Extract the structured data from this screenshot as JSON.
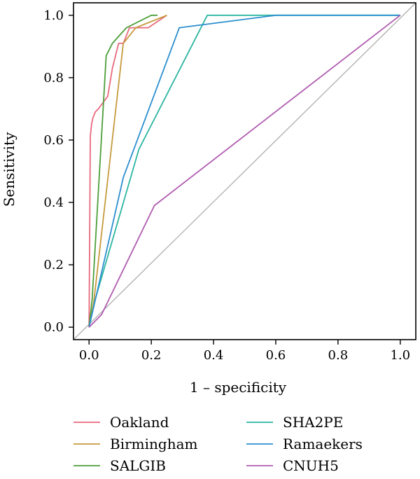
{
  "chart_data": {
    "type": "line",
    "title": "",
    "xlabel": "1 – specificity",
    "ylabel": "Sensitivity",
    "xlim": [
      -0.05,
      1.05
    ],
    "ylim": [
      -0.04,
      1.04
    ],
    "xticks": [
      0.0,
      0.2,
      0.4,
      0.6,
      0.8,
      1.0
    ],
    "yticks": [
      0.0,
      0.2,
      0.4,
      0.6,
      0.8,
      1.0
    ],
    "xtick_labels": [
      "0.0",
      "0.2",
      "0.4",
      "0.6",
      "0.8",
      "1.0"
    ],
    "ytick_labels": [
      "0.0",
      "0.2",
      "0.4",
      "0.6",
      "0.8",
      "1.0"
    ],
    "grid": false,
    "legend_position": "bottom",
    "reference_line": {
      "from": [
        -0.05,
        -0.04
      ],
      "to": [
        1.05,
        1.04
      ],
      "color": "#b3b3b3"
    },
    "series": [
      {
        "name": "Oakland",
        "color": "#e8697d",
        "x": [
          0,
          0.004,
          0.008,
          0.012,
          0.02,
          0.03,
          0.045,
          0.06,
          0.075,
          0.095,
          0.11,
          0.13,
          0.14,
          0.19,
          0.25
        ],
        "y": [
          0,
          0.61,
          0.65,
          0.67,
          0.69,
          0.7,
          0.72,
          0.74,
          0.83,
          0.91,
          0.91,
          0.96,
          0.96,
          0.96,
          1.0
        ]
      },
      {
        "name": "Birmingham",
        "color": "#c69a3e",
        "x": [
          0,
          0.015,
          0.11,
          0.15,
          0.25
        ],
        "y": [
          0,
          0.08,
          0.91,
          0.96,
          1.0
        ]
      },
      {
        "name": "SALGIB",
        "color": "#4d9e3a",
        "x": [
          0,
          0.01,
          0.055,
          0.075,
          0.12,
          0.2,
          0.22
        ],
        "y": [
          0,
          0.09,
          0.87,
          0.91,
          0.96,
          1.0,
          1.0
        ]
      },
      {
        "name": "SHA2PE",
        "color": "#2cb5a0",
        "x": [
          0,
          0.02,
          0.16,
          0.38,
          1.0
        ],
        "y": [
          0,
          0.09,
          0.57,
          1.0,
          1.0
        ]
      },
      {
        "name": "Ramaekers",
        "color": "#2b8fcf",
        "x": [
          0,
          0.11,
          0.29,
          0.6,
          1.0
        ],
        "y": [
          0,
          0.48,
          0.96,
          1.0,
          1.0
        ]
      },
      {
        "name": "CNUH5",
        "color": "#b05cb0",
        "x": [
          0,
          0.04,
          0.21,
          1.0
        ],
        "y": [
          0,
          0.04,
          0.39,
          1.0
        ]
      }
    ]
  }
}
